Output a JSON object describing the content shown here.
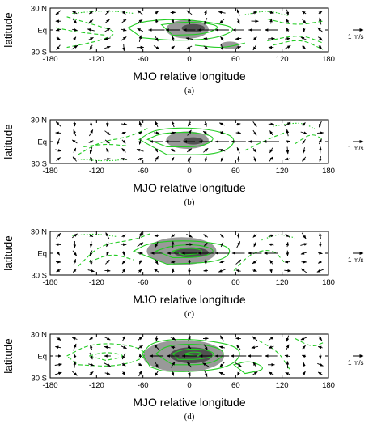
{
  "colors": {
    "contour": "#22cc22",
    "shading": "#777777",
    "shading_dark": "#444444",
    "vectors": "#000000"
  },
  "reference_vector_label": "1 m/s",
  "chart_data": [
    {
      "type": "contour",
      "panel_label": "(a)",
      "xlabel": "MJO relative longitude",
      "ylabel": "latitude",
      "xlim": [
        -180,
        180
      ],
      "ylim": [
        -30,
        30
      ],
      "xticks": [
        "-180",
        "-120",
        "-60",
        "0",
        "60",
        "120",
        "180"
      ],
      "yticks": [
        "30 N",
        "Eq",
        "30 S"
      ],
      "shaded_regions": [
        {
          "lon": [
            -30,
            25
          ],
          "lat": [
            -12,
            14
          ],
          "intensity": 1
        },
        {
          "lon": [
            -10,
            20
          ],
          "lat": [
            -3,
            8
          ],
          "intensity": 2
        },
        {
          "lon": [
            40,
            65
          ],
          "lat": [
            -26,
            -16
          ],
          "intensity": 1
        }
      ]
    },
    {
      "type": "contour",
      "panel_label": "(b)",
      "xlabel": "MJO relative longitude",
      "ylabel": "latitude",
      "xlim": [
        -180,
        180
      ],
      "ylim": [
        -30,
        30
      ],
      "xticks": [
        "-180",
        "-120",
        "-60",
        "0",
        "60",
        "120",
        "180"
      ],
      "yticks": [
        "30 N",
        "Eq",
        "30 S"
      ],
      "shaded_regions": [
        {
          "lon": [
            -30,
            25
          ],
          "lat": [
            -10,
            14
          ],
          "intensity": 1
        },
        {
          "lon": [
            -8,
            18
          ],
          "lat": [
            -4,
            6
          ],
          "intensity": 2
        }
      ]
    },
    {
      "type": "contour",
      "panel_label": "(c)",
      "xlabel": "MJO relative longitude",
      "ylabel": "latitude",
      "xlim": [
        -180,
        180
      ],
      "ylim": [
        -30,
        30
      ],
      "xticks": [
        "-180",
        "-120",
        "-60",
        "0",
        "60",
        "120",
        "180"
      ],
      "yticks": [
        "30 N",
        "Eq",
        "30 S"
      ],
      "shaded_regions": [
        {
          "lon": [
            -55,
            35
          ],
          "lat": [
            -16,
            22
          ],
          "intensity": 1
        },
        {
          "lon": [
            -20,
            25
          ],
          "lat": [
            -6,
            8
          ],
          "intensity": 2
        }
      ]
    },
    {
      "type": "contour",
      "panel_label": "(d)",
      "xlabel": "MJO relative longitude",
      "ylabel": "latitude",
      "xlim": [
        -180,
        180
      ],
      "ylim": [
        -30,
        30
      ],
      "xticks": [
        "-180",
        "-120",
        "-60",
        "0",
        "60",
        "120",
        "180"
      ],
      "yticks": [
        "30 N",
        "Eq",
        "30 S"
      ],
      "shaded_regions": [
        {
          "lon": [
            -60,
            45
          ],
          "lat": [
            -22,
            22
          ],
          "intensity": 1
        },
        {
          "lon": [
            -25,
            30
          ],
          "lat": [
            -10,
            12
          ],
          "intensity": 2
        }
      ]
    }
  ]
}
